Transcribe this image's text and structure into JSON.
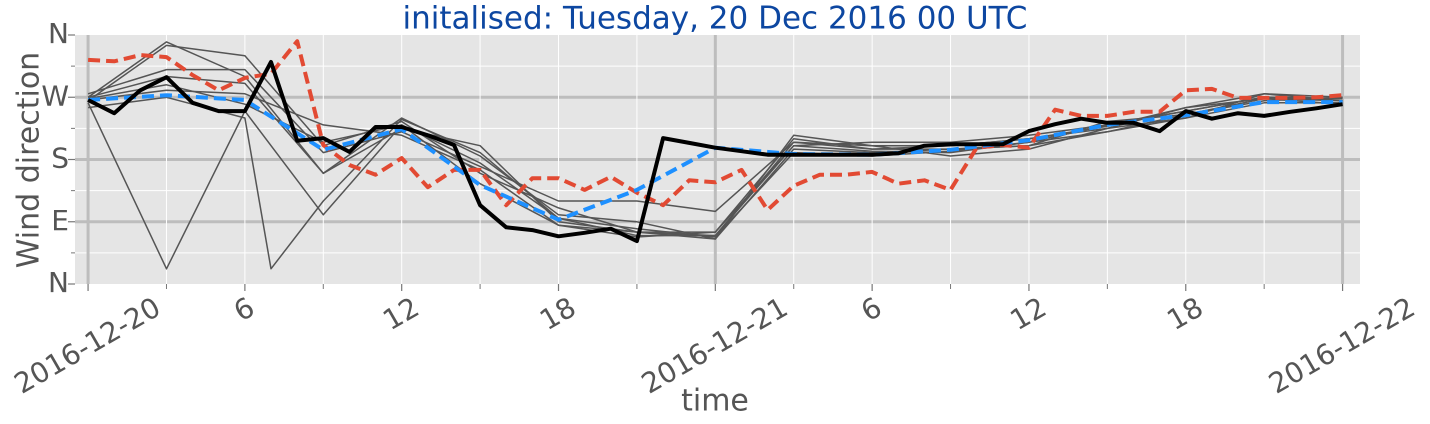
{
  "chart_data": {
    "type": "line",
    "title": "initalised: Tuesday, 20 Dec 2016 00 UTC",
    "xlabel": "time",
    "ylabel": "Wind direction",
    "xlim": [
      "2016-12-19T23:30",
      "2016-12-22T00:40"
    ],
    "ylim": [
      0,
      360
    ],
    "yticks": [
      {
        "value": 0,
        "label": "N"
      },
      {
        "value": 90,
        "label": "E"
      },
      {
        "value": 180,
        "label": "S"
      },
      {
        "value": 270,
        "label": "W"
      },
      {
        "value": 360,
        "label": "N"
      }
    ],
    "yticks_minor": [
      45,
      135,
      225,
      315
    ],
    "xticks": [
      {
        "value": "2016-12-20T00:00",
        "label": "2016-12-20"
      },
      {
        "value": "2016-12-20T06:00",
        "label": "6"
      },
      {
        "value": "2016-12-20T12:00",
        "label": "12"
      },
      {
        "value": "2016-12-20T18:00",
        "label": "18"
      },
      {
        "value": "2016-12-21T00:00",
        "label": "2016-12-21"
      },
      {
        "value": "2016-12-21T06:00",
        "label": "6"
      },
      {
        "value": "2016-12-21T12:00",
        "label": "12"
      },
      {
        "value": "2016-12-21T18:00",
        "label": "18"
      },
      {
        "value": "2016-12-22T00:00",
        "label": "2016-12-22"
      }
    ],
    "xticks_minor": [
      "2016-12-20T03:00",
      "2016-12-20T09:00",
      "2016-12-20T15:00",
      "2016-12-20T21:00",
      "2016-12-21T03:00",
      "2016-12-21T09:00",
      "2016-12-21T15:00",
      "2016-12-21T21:00"
    ],
    "grid": true,
    "series": [
      {
        "color": "#555555",
        "width": 1.5,
        "dash": false,
        "x": [
          "2016-12-20T00:00",
          "2016-12-20T03:00",
          "2016-12-20T06:00",
          "2016-12-20T09:00",
          "2016-12-20T12:00",
          "2016-12-20T15:00",
          "2016-12-20T18:00",
          "2016-12-20T21:00",
          "2016-12-21T00:00",
          "2016-12-21T03:00",
          "2016-12-21T06:00",
          "2016-12-21T09:00",
          "2016-12-21T12:00",
          "2016-12-21T15:00",
          "2016-12-21T18:00",
          "2016-12-21T21:00",
          "2016-12-22T00:00"
        ],
        "values": [
          266,
          280,
          275,
          230,
          215,
          165,
          85,
          68,
          75,
          200,
          205,
          205,
          215,
          230,
          250,
          270,
          268
        ]
      },
      {
        "color": "#555555",
        "width": 1.5,
        "dash": false,
        "x": [
          "2016-12-20T00:00",
          "2016-12-20T03:00",
          "2016-12-20T06:00",
          "2016-12-20T09:00",
          "2016-12-20T12:00",
          "2016-12-20T15:00",
          "2016-12-20T18:00",
          "2016-12-20T21:00",
          "2016-12-21T00:00",
          "2016-12-21T03:00",
          "2016-12-21T06:00",
          "2016-12-21T09:00",
          "2016-12-21T12:00",
          "2016-12-21T15:00",
          "2016-12-21T18:00",
          "2016-12-21T21:00",
          "2016-12-22T00:00"
        ],
        "values": [
          270,
          300,
          290,
          160,
          225,
          200,
          90,
          75,
          65,
          195,
          190,
          195,
          200,
          235,
          245,
          268,
          265
        ]
      },
      {
        "color": "#555555",
        "width": 1.5,
        "dash": false,
        "x": [
          "2016-12-20T00:00",
          "2016-12-20T03:00",
          "2016-12-20T06:00",
          "2016-12-20T09:00",
          "2016-12-20T12:00",
          "2016-12-20T15:00",
          "2016-12-20T18:00",
          "2016-12-20T21:00",
          "2016-12-21T00:00",
          "2016-12-21T03:00",
          "2016-12-21T06:00",
          "2016-12-21T09:00",
          "2016-12-21T12:00",
          "2016-12-21T15:00",
          "2016-12-21T18:00",
          "2016-12-21T21:00",
          "2016-12-22T00:00"
        ],
        "values": [
          268,
          288,
          260,
          205,
          230,
          145,
          85,
          75,
          70,
          205,
          200,
          200,
          210,
          225,
          255,
          275,
          270
        ]
      },
      {
        "color": "#555555",
        "width": 1.5,
        "dash": false,
        "x": [
          "2016-12-20T00:00",
          "2016-12-20T03:00",
          "2016-12-20T06:00",
          "2016-12-20T09:00",
          "2016-12-20T12:00",
          "2016-12-20T15:00",
          "2016-12-20T18:00",
          "2016-12-20T21:00",
          "2016-12-21T00:00",
          "2016-12-21T03:00",
          "2016-12-21T06:00",
          "2016-12-21T09:00",
          "2016-12-21T12:00",
          "2016-12-21T15:00",
          "2016-12-21T18:00",
          "2016-12-21T21:00",
          "2016-12-22T00:00"
        ],
        "values": [
          262,
          22,
          250,
          100,
          230,
          175,
          95,
          70,
          70,
          200,
          192,
          190,
          205,
          230,
          250,
          270,
          265
        ]
      },
      {
        "color": "#555555",
        "width": 1.5,
        "dash": false,
        "x": [
          "2016-12-20T00:00",
          "2016-12-20T03:00",
          "2016-12-20T06:00",
          "2016-12-20T09:00",
          "2016-12-20T12:00",
          "2016-12-20T15:00",
          "2016-12-20T18:00",
          "2016-12-20T21:00",
          "2016-12-21T00:00",
          "2016-12-21T03:00",
          "2016-12-21T06:00",
          "2016-12-21T09:00",
          "2016-12-21T12:00",
          "2016-12-21T15:00",
          "2016-12-21T18:00",
          "2016-12-21T21:00",
          "2016-12-22T00:00"
        ],
        "values": [
          265,
          345,
          330,
          200,
          235,
          160,
          110,
          75,
          75,
          210,
          195,
          195,
          200,
          220,
          245,
          265,
          270
        ]
      },
      {
        "color": "#555555",
        "width": 1.5,
        "dash": false,
        "x": [
          "2016-12-20T00:00",
          "2016-12-20T03:00",
          "2016-12-20T06:00",
          "2016-12-20T07:00",
          "2016-12-20T09:00",
          "2016-12-20T12:00",
          "2016-12-20T15:00",
          "2016-12-20T18:00",
          "2016-12-20T21:00",
          "2016-12-21T00:00",
          "2016-12-21T03:00",
          "2016-12-21T06:00",
          "2016-12-21T09:00",
          "2016-12-21T12:00",
          "2016-12-21T15:00",
          "2016-12-21T18:00",
          "2016-12-21T21:00",
          "2016-12-22T00:00"
        ],
        "values": [
          255,
          270,
          240,
          22,
          120,
          238,
          190,
          95,
          80,
          68,
          190,
          185,
          192,
          205,
          220,
          240,
          262,
          262
        ]
      },
      {
        "color": "#555555",
        "width": 1.5,
        "dash": false,
        "x": [
          "2016-12-20T00:00",
          "2016-12-20T03:00",
          "2016-12-20T06:00",
          "2016-12-20T09:00",
          "2016-12-20T12:00",
          "2016-12-20T15:00",
          "2016-12-20T18:00",
          "2016-12-20T21:00",
          "2016-12-21T00:00",
          "2016-12-21T03:00",
          "2016-12-21T06:00",
          "2016-12-21T09:00",
          "2016-12-21T12:00",
          "2016-12-21T15:00",
          "2016-12-21T18:00",
          "2016-12-21T21:00",
          "2016-12-22T00:00"
        ],
        "values": [
          270,
          350,
          300,
          160,
          240,
          185,
          100,
          90,
          65,
          215,
          200,
          185,
          195,
          225,
          240,
          275,
          265
        ]
      },
      {
        "color": "#555555",
        "width": 1.5,
        "dash": false,
        "x": [
          "2016-12-20T00:00",
          "2016-12-20T03:00",
          "2016-12-20T06:00",
          "2016-12-20T09:00",
          "2016-12-20T12:00",
          "2016-12-20T15:00",
          "2016-12-20T18:00",
          "2016-12-20T21:00",
          "2016-12-21T00:00",
          "2016-12-21T03:00",
          "2016-12-21T06:00",
          "2016-12-21T09:00",
          "2016-12-21T12:00",
          "2016-12-21T15:00",
          "2016-12-21T18:00",
          "2016-12-21T21:00",
          "2016-12-22T00:00"
        ],
        "values": [
          275,
          310,
          310,
          190,
          220,
          170,
          120,
          120,
          105,
          205,
          195,
          200,
          210,
          228,
          255,
          268,
          260
        ]
      },
      {
        "color": "#e24a33",
        "width": 4,
        "dash": true,
        "x": [
          "2016-12-20T00:00",
          "2016-12-20T01:00",
          "2016-12-20T02:00",
          "2016-12-20T03:00",
          "2016-12-20T04:00",
          "2016-12-20T05:00",
          "2016-12-20T06:00",
          "2016-12-20T07:00",
          "2016-12-20T08:00",
          "2016-12-20T09:00",
          "2016-12-20T10:00",
          "2016-12-20T11:00",
          "2016-12-20T12:00",
          "2016-12-20T13:00",
          "2016-12-20T14:00",
          "2016-12-20T15:00",
          "2016-12-20T16:00",
          "2016-12-20T17:00",
          "2016-12-20T18:00",
          "2016-12-20T19:00",
          "2016-12-20T20:00",
          "2016-12-20T21:00",
          "2016-12-20T22:00",
          "2016-12-20T23:00",
          "2016-12-21T00:00",
          "2016-12-21T01:00",
          "2016-12-21T02:00",
          "2016-12-21T03:00",
          "2016-12-21T04:00",
          "2016-12-21T05:00",
          "2016-12-21T06:00",
          "2016-12-21T07:00",
          "2016-12-21T08:00",
          "2016-12-21T09:00",
          "2016-12-21T10:00",
          "2016-12-21T11:00",
          "2016-12-21T12:00",
          "2016-12-21T13:00",
          "2016-12-21T14:00",
          "2016-12-21T15:00",
          "2016-12-21T16:00",
          "2016-12-21T17:00",
          "2016-12-21T18:00",
          "2016-12-21T19:00",
          "2016-12-21T20:00",
          "2016-12-21T21:00",
          "2016-12-21T22:00",
          "2016-12-21T23:00",
          "2016-12-22T00:00"
        ],
        "values": [
          324,
          322,
          331,
          328,
          302,
          280,
          298,
          304,
          351,
          201,
          172,
          158,
          182,
          140,
          165,
          165,
          114,
          153,
          153,
          136,
          155,
          132,
          114,
          150,
          147,
          165,
          107,
          142,
          158,
          158,
          162,
          145,
          150,
          136,
          197,
          201,
          197,
          252,
          243,
          243,
          249,
          249,
          280,
          282,
          269,
          269,
          269,
          270,
          273
        ]
      },
      {
        "color": "#1e90ff",
        "width": 4,
        "dash": true,
        "x": [
          "2016-12-20T00:00",
          "2016-12-20T03:00",
          "2016-12-20T06:00",
          "2016-12-20T09:00",
          "2016-12-20T12:00",
          "2016-12-20T15:00",
          "2016-12-20T18:00",
          "2016-12-20T21:00",
          "2016-12-21T00:00",
          "2016-12-21T03:00",
          "2016-12-21T06:00",
          "2016-12-21T09:00",
          "2016-12-21T12:00",
          "2016-12-21T15:00",
          "2016-12-21T18:00",
          "2016-12-21T21:00",
          "2016-12-22T00:00"
        ],
        "values": [
          266,
          273,
          266,
          194,
          224,
          143,
          93,
          136,
          197,
          188,
          187,
          194,
          208,
          230,
          244,
          263,
          263
        ]
      },
      {
        "color": "#000000",
        "width": 4,
        "dash": false,
        "x": [
          "2016-12-20T00:00",
          "2016-12-20T01:00",
          "2016-12-20T02:00",
          "2016-12-20T03:00",
          "2016-12-20T04:00",
          "2016-12-20T05:00",
          "2016-12-20T06:00",
          "2016-12-20T07:00",
          "2016-12-20T08:00",
          "2016-12-20T09:00",
          "2016-12-20T10:00",
          "2016-12-20T11:00",
          "2016-12-20T12:00",
          "2016-12-20T13:00",
          "2016-12-20T14:00",
          "2016-12-20T15:00",
          "2016-12-20T16:00",
          "2016-12-20T17:00",
          "2016-12-20T18:00",
          "2016-12-20T19:00",
          "2016-12-20T20:00",
          "2016-12-20T21:00",
          "2016-12-20T22:00",
          "2016-12-20T23:00",
          "2016-12-21T00:00",
          "2016-12-21T01:00",
          "2016-12-21T02:00",
          "2016-12-21T03:00",
          "2016-12-21T04:00",
          "2016-12-21T05:00",
          "2016-12-21T06:00",
          "2016-12-21T07:00",
          "2016-12-21T08:00",
          "2016-12-21T09:00",
          "2016-12-21T10:00",
          "2016-12-21T11:00",
          "2016-12-21T12:00",
          "2016-12-21T13:00",
          "2016-12-21T14:00",
          "2016-12-21T15:00",
          "2016-12-21T16:00",
          "2016-12-21T17:00",
          "2016-12-21T18:00",
          "2016-12-21T19:00",
          "2016-12-21T20:00",
          "2016-12-21T21:00",
          "2016-12-21T22:00",
          "2016-12-21T23:00",
          "2016-12-22T00:00"
        ],
        "values": [
          266,
          247,
          280,
          299,
          262,
          250,
          250,
          321,
          207,
          211,
          191,
          227,
          227,
          215,
          201,
          114,
          82,
          78,
          69,
          74,
          80,
          62,
          211,
          204,
          197,
          192,
          187,
          187,
          187,
          187,
          187,
          189,
          200,
          202,
          202,
          202,
          221,
          231,
          239,
          233,
          233,
          221,
          250,
          239,
          247,
          243,
          249,
          254,
          260
        ]
      }
    ]
  }
}
